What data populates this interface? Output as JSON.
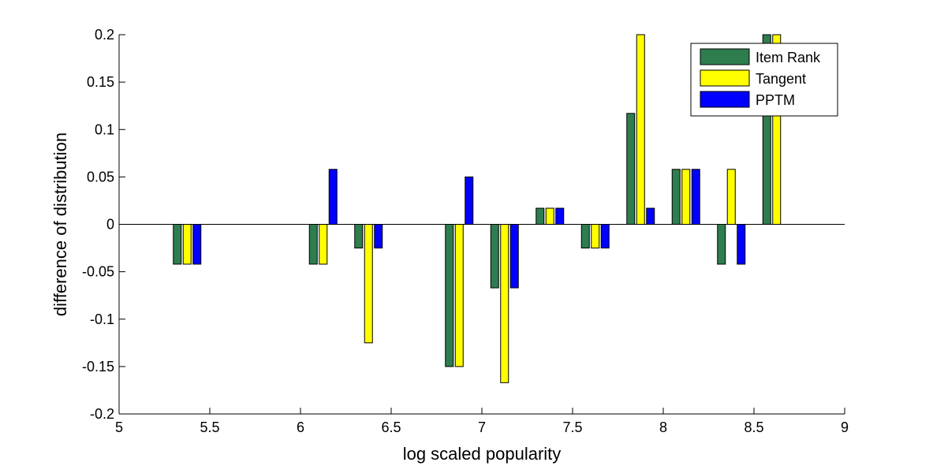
{
  "chart_data": {
    "type": "bar",
    "title": "",
    "xlabel": "log scaled popularity",
    "ylabel": "difference of distribution",
    "xlim": [
      5,
      9
    ],
    "ylim": [
      -0.2,
      0.2
    ],
    "xticks": [
      "5",
      "5.5",
      "6",
      "6.5",
      "7",
      "7.5",
      "8",
      "8.5",
      "9"
    ],
    "yticks": [
      "-0.2",
      "-0.15",
      "-0.1",
      "-0.05",
      "0",
      "0.05",
      "0.1",
      "0.15",
      "0.2"
    ],
    "grid": false,
    "legend_position": "top-right",
    "x": [
      5.375,
      6.125,
      6.375,
      6.875,
      7.125,
      7.375,
      7.625,
      7.875,
      8.125,
      8.375,
      8.625
    ],
    "series": [
      {
        "name": "Item Rank",
        "color": "#2e7d4f",
        "values": [
          -0.042,
          -0.042,
          -0.025,
          -0.15,
          -0.067,
          0.017,
          -0.025,
          0.117,
          0.058,
          -0.042,
          0.2
        ]
      },
      {
        "name": "Tangent",
        "color": "#ffff00",
        "values": [
          -0.042,
          -0.042,
          -0.125,
          -0.15,
          -0.167,
          0.017,
          -0.025,
          0.2,
          0.058,
          0.058,
          0.2
        ]
      },
      {
        "name": "PPTM",
        "color": "#0000ff",
        "values": [
          -0.042,
          0.058,
          -0.025,
          0.05,
          -0.067,
          0.017,
          -0.025,
          0.017,
          0.058,
          -0.042,
          null
        ]
      }
    ]
  }
}
